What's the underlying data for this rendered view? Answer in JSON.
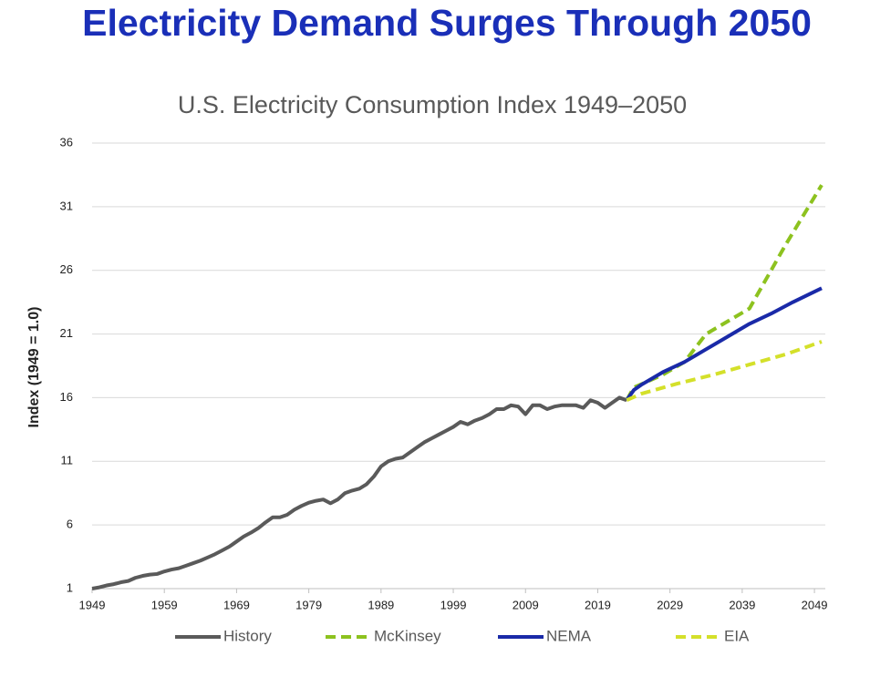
{
  "chart_data": {
    "type": "line",
    "title": "Electricity Demand Surges Through 2050",
    "subtitle": "U.S. Electricity Consumption Index 1949–2050",
    "y_label": "Index (1949 = 1.0)",
    "xlim": [
      1949,
      2050
    ],
    "xticks": [
      1949,
      1959,
      1969,
      1979,
      1989,
      1999,
      2009,
      2019,
      2029,
      2039,
      2049
    ],
    "ylim": [
      1,
      36
    ],
    "yticks": [
      1,
      6,
      11,
      16,
      21,
      26,
      31,
      36
    ],
    "grid": true,
    "legend": "bottom",
    "series": [
      {
        "name": "History",
        "color": "#5a5a5a",
        "style": "solid",
        "x": [
          1949,
          1950,
          1951,
          1952,
          1953,
          1954,
          1955,
          1956,
          1957,
          1958,
          1959,
          1960,
          1961,
          1962,
          1963,
          1964,
          1965,
          1966,
          1967,
          1968,
          1969,
          1970,
          1971,
          1972,
          1973,
          1974,
          1975,
          1976,
          1977,
          1978,
          1979,
          1980,
          1981,
          1982,
          1983,
          1984,
          1985,
          1986,
          1987,
          1988,
          1989,
          1990,
          1991,
          1992,
          1993,
          1994,
          1995,
          1996,
          1997,
          1998,
          1999,
          2000,
          2001,
          2002,
          2003,
          2004,
          2005,
          2006,
          2007,
          2008,
          2009,
          2010,
          2011,
          2012,
          2013,
          2014,
          2015,
          2016,
          2017,
          2018,
          2019,
          2020,
          2021,
          2022,
          2023
        ],
        "values": [
          1.0,
          1.1,
          1.25,
          1.35,
          1.5,
          1.6,
          1.85,
          2.0,
          2.1,
          2.15,
          2.35,
          2.5,
          2.6,
          2.8,
          3.0,
          3.2,
          3.45,
          3.7,
          4.0,
          4.3,
          4.7,
          5.1,
          5.4,
          5.75,
          6.2,
          6.6,
          6.6,
          6.8,
          7.2,
          7.5,
          7.75,
          7.9,
          8.0,
          7.7,
          8.0,
          8.5,
          8.7,
          8.85,
          9.2,
          9.8,
          10.6,
          11.0,
          11.2,
          11.3,
          11.7,
          12.1,
          12.5,
          12.8,
          13.1,
          13.4,
          13.7,
          14.1,
          13.9,
          14.2,
          14.4,
          14.7,
          15.1,
          15.1,
          15.4,
          15.3,
          14.7,
          15.4,
          15.4,
          15.1,
          15.3,
          15.4,
          15.4,
          15.4,
          15.2,
          15.8,
          15.6,
          15.2,
          15.6,
          16.0,
          15.8
        ]
      },
      {
        "name": "McKinsey",
        "color": "#8dc21f",
        "style": "dashed",
        "x": [
          2023,
          2024,
          2028,
          2031,
          2034,
          2037,
          2040,
          2045,
          2050
        ],
        "values": [
          15.8,
          16.8,
          17.8,
          18.8,
          21.0,
          22.0,
          23.0,
          28.0,
          32.7
        ]
      },
      {
        "name": "NEMA",
        "color": "#1a2aa8",
        "style": "solid",
        "x": [
          2023,
          2024,
          2025,
          2028,
          2031,
          2034,
          2037,
          2040,
          2043,
          2046,
          2050
        ],
        "values": [
          15.8,
          16.6,
          17.0,
          18.0,
          18.8,
          19.8,
          20.8,
          21.8,
          22.6,
          23.5,
          24.6
        ]
      },
      {
        "name": "EIA",
        "color": "#d4e02a",
        "style": "dashed",
        "x": [
          2023,
          2025,
          2030,
          2035,
          2040,
          2045,
          2050
        ],
        "values": [
          15.8,
          16.3,
          17.1,
          17.8,
          18.6,
          19.4,
          20.4
        ]
      }
    ]
  }
}
